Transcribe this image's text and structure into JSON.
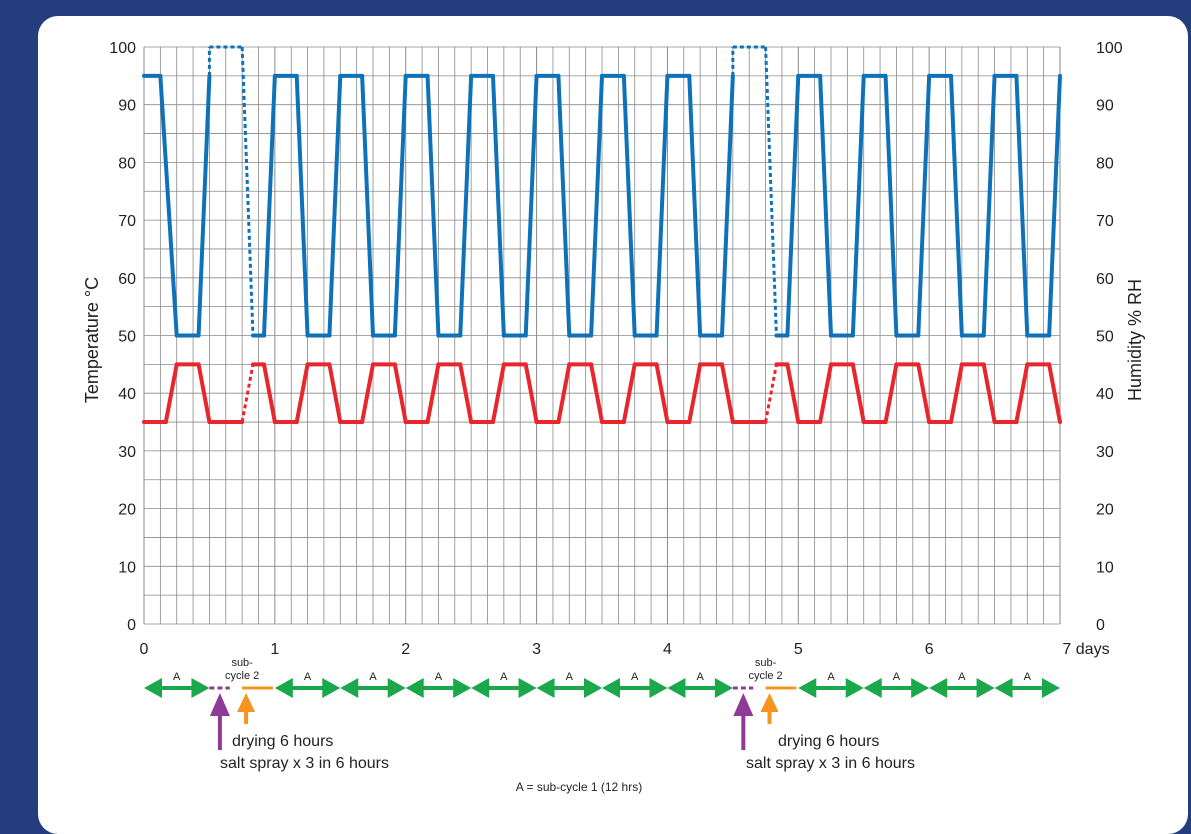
{
  "chart_data": {
    "type": "line",
    "xlabel": "",
    "y_left_label": "Temperature °C",
    "y_right_label": "Humidity % RH",
    "xlim": [
      0,
      7
    ],
    "ylim_left": [
      0,
      100
    ],
    "ylim_right": [
      0,
      100
    ],
    "x_ticks": [
      "0",
      "1",
      "2",
      "3",
      "4",
      "5",
      "6",
      "7 days"
    ],
    "y_left_ticks": [
      "0",
      "10",
      "20",
      "30",
      "40",
      "50",
      "60",
      "70",
      "80",
      "90",
      "100"
    ],
    "y_right_ticks": [
      "0",
      "10",
      "20",
      "30",
      "40",
      "50",
      "60",
      "70",
      "80",
      "90",
      "100"
    ],
    "grid": true,
    "colors": {
      "temperature": "#e8262d",
      "humidity": "#0f72b9",
      "arrow_a": "#1aa84a",
      "salt_spray": "#8e3b97",
      "drying": "#f7941d"
    },
    "series": [
      {
        "name": "Humidity % RH",
        "axis": "right",
        "points": [
          [
            0,
            95
          ],
          [
            0.125,
            95
          ],
          [
            0.25,
            50
          ],
          [
            0.417,
            50
          ],
          [
            0.5,
            95
          ],
          [
            0.5,
            100
          ],
          [
            0.75,
            100
          ],
          [
            0.833,
            50
          ],
          [
            0.917,
            50
          ],
          [
            1.0,
            95
          ],
          [
            1.167,
            95
          ],
          [
            1.25,
            50
          ],
          [
            1.417,
            50
          ],
          [
            1.5,
            95
          ],
          [
            1.667,
            95
          ],
          [
            1.75,
            50
          ],
          [
            1.917,
            50
          ],
          [
            2.0,
            95
          ],
          [
            2.167,
            95
          ],
          [
            2.25,
            50
          ],
          [
            2.417,
            50
          ],
          [
            2.5,
            95
          ],
          [
            2.667,
            95
          ],
          [
            2.75,
            50
          ],
          [
            2.917,
            50
          ],
          [
            3.0,
            95
          ],
          [
            3.167,
            95
          ],
          [
            3.25,
            50
          ],
          [
            3.417,
            50
          ],
          [
            3.5,
            95
          ],
          [
            3.667,
            95
          ],
          [
            3.75,
            50
          ],
          [
            3.917,
            50
          ],
          [
            4.0,
            95
          ],
          [
            4.167,
            95
          ],
          [
            4.25,
            50
          ],
          [
            4.417,
            50
          ],
          [
            4.5,
            95
          ],
          [
            4.5,
            100
          ],
          [
            4.75,
            100
          ],
          [
            4.833,
            50
          ],
          [
            4.917,
            50
          ],
          [
            5.0,
            95
          ],
          [
            5.167,
            95
          ],
          [
            5.25,
            50
          ],
          [
            5.417,
            50
          ],
          [
            5.5,
            95
          ],
          [
            5.667,
            95
          ],
          [
            5.75,
            50
          ],
          [
            5.917,
            50
          ],
          [
            6.0,
            95
          ],
          [
            6.167,
            95
          ],
          [
            6.25,
            50
          ],
          [
            6.417,
            50
          ],
          [
            6.5,
            95
          ],
          [
            6.667,
            95
          ],
          [
            6.75,
            50
          ],
          [
            6.917,
            50
          ],
          [
            7.0,
            95
          ]
        ],
        "dotted_segments": [
          [
            0.5,
            0.833
          ],
          [
            4.5,
            4.833
          ]
        ]
      },
      {
        "name": "Temperature °C",
        "axis": "left",
        "points": [
          [
            0,
            35
          ],
          [
            0.167,
            35
          ],
          [
            0.25,
            45
          ],
          [
            0.417,
            45
          ],
          [
            0.5,
            35
          ],
          [
            0.75,
            35
          ],
          [
            0.833,
            45
          ],
          [
            0.917,
            45
          ],
          [
            1.0,
            35
          ],
          [
            1.167,
            35
          ],
          [
            1.25,
            45
          ],
          [
            1.417,
            45
          ],
          [
            1.5,
            35
          ],
          [
            1.667,
            35
          ],
          [
            1.75,
            45
          ],
          [
            1.917,
            45
          ],
          [
            2.0,
            35
          ],
          [
            2.167,
            35
          ],
          [
            2.25,
            45
          ],
          [
            2.417,
            45
          ],
          [
            2.5,
            35
          ],
          [
            2.667,
            35
          ],
          [
            2.75,
            45
          ],
          [
            2.917,
            45
          ],
          [
            3.0,
            35
          ],
          [
            3.167,
            35
          ],
          [
            3.25,
            45
          ],
          [
            3.417,
            45
          ],
          [
            3.5,
            35
          ],
          [
            3.667,
            35
          ],
          [
            3.75,
            45
          ],
          [
            3.917,
            45
          ],
          [
            4.0,
            35
          ],
          [
            4.167,
            35
          ],
          [
            4.25,
            45
          ],
          [
            4.417,
            45
          ],
          [
            4.5,
            35
          ],
          [
            4.75,
            35
          ],
          [
            4.833,
            45
          ],
          [
            4.917,
            45
          ],
          [
            5.0,
            35
          ],
          [
            5.167,
            35
          ],
          [
            5.25,
            45
          ],
          [
            5.417,
            45
          ],
          [
            5.5,
            35
          ],
          [
            5.667,
            35
          ],
          [
            5.75,
            45
          ],
          [
            5.917,
            45
          ],
          [
            6.0,
            35
          ],
          [
            6.167,
            35
          ],
          [
            6.25,
            45
          ],
          [
            6.417,
            45
          ],
          [
            6.5,
            35
          ],
          [
            6.667,
            35
          ],
          [
            6.75,
            45
          ],
          [
            6.917,
            45
          ],
          [
            7.0,
            35
          ]
        ],
        "dotted_segments": [
          [
            0.75,
            0.833
          ],
          [
            4.75,
            4.833
          ]
        ]
      }
    ],
    "timeline": {
      "a_label": "A",
      "a_segments": [
        [
          0,
          0.5
        ],
        [
          1.0,
          1.5
        ],
        [
          1.5,
          2.0
        ],
        [
          2.0,
          2.5
        ],
        [
          2.5,
          3.0
        ],
        [
          3.0,
          3.5
        ],
        [
          3.5,
          4.0
        ],
        [
          4.0,
          4.5
        ],
        [
          5.0,
          5.5
        ],
        [
          5.5,
          6.0
        ],
        [
          6.0,
          6.5
        ],
        [
          6.5,
          7.0
        ]
      ],
      "subcycle2": [
        {
          "label_line1": "sub-",
          "label_line2": "cycle 2",
          "salt_spray": [
            0.5,
            0.625
          ],
          "drying": [
            0.75,
            1.0
          ]
        },
        {
          "label_line1": "sub-",
          "label_line2": "cycle 2",
          "salt_spray": [
            4.5,
            4.625
          ],
          "drying": [
            4.75,
            5.0
          ]
        }
      ],
      "drying_text": "drying 6 hours",
      "salt_spray_text": "salt spray x 3 in 6 hours",
      "footnote": "A = sub-cycle 1 (12 hrs)"
    }
  }
}
